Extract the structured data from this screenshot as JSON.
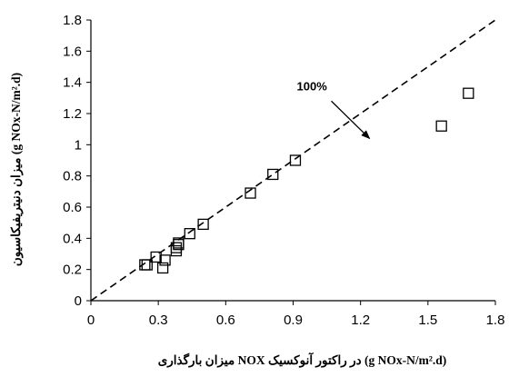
{
  "chart_data": {
    "type": "scatter",
    "title": "",
    "xlabel": "میزان بارگذاری NOX در راکتور آنوکسیک (g NOx-N/m².d)",
    "ylabel": "میزان دنیتریفیکاسیون (g NOx-N/m².d)",
    "xlim": [
      0,
      1.8
    ],
    "ylim": [
      0,
      1.8
    ],
    "xticks": [
      "0",
      "0.3",
      "0.6",
      "0.9",
      "1.2",
      "1.5",
      "1.8"
    ],
    "yticks": [
      "0",
      "0.2",
      "0.4",
      "0.6",
      "0.8",
      "1",
      "1.2",
      "1.4",
      "1.6",
      "1.8"
    ],
    "grid": false,
    "marker": "hollow-square",
    "points": [
      {
        "x": 0.24,
        "y": 0.23
      },
      {
        "x": 0.25,
        "y": 0.23
      },
      {
        "x": 0.29,
        "y": 0.28
      },
      {
        "x": 0.32,
        "y": 0.21
      },
      {
        "x": 0.33,
        "y": 0.26
      },
      {
        "x": 0.38,
        "y": 0.32
      },
      {
        "x": 0.38,
        "y": 0.34
      },
      {
        "x": 0.39,
        "y": 0.36
      },
      {
        "x": 0.39,
        "y": 0.37
      },
      {
        "x": 0.44,
        "y": 0.43
      },
      {
        "x": 0.5,
        "y": 0.49
      },
      {
        "x": 0.71,
        "y": 0.69
      },
      {
        "x": 0.81,
        "y": 0.81
      },
      {
        "x": 0.91,
        "y": 0.9
      },
      {
        "x": 1.56,
        "y": 1.12
      },
      {
        "x": 1.68,
        "y": 1.33
      }
    ],
    "reference_line": {
      "label": "100%",
      "from": [
        0,
        0
      ],
      "to": [
        1.8,
        1.8
      ],
      "style": "dashed"
    },
    "annotation": {
      "text": "100%",
      "arrow_from": [
        1.07,
        1.28
      ],
      "arrow_to": [
        1.24,
        1.04
      ]
    }
  }
}
